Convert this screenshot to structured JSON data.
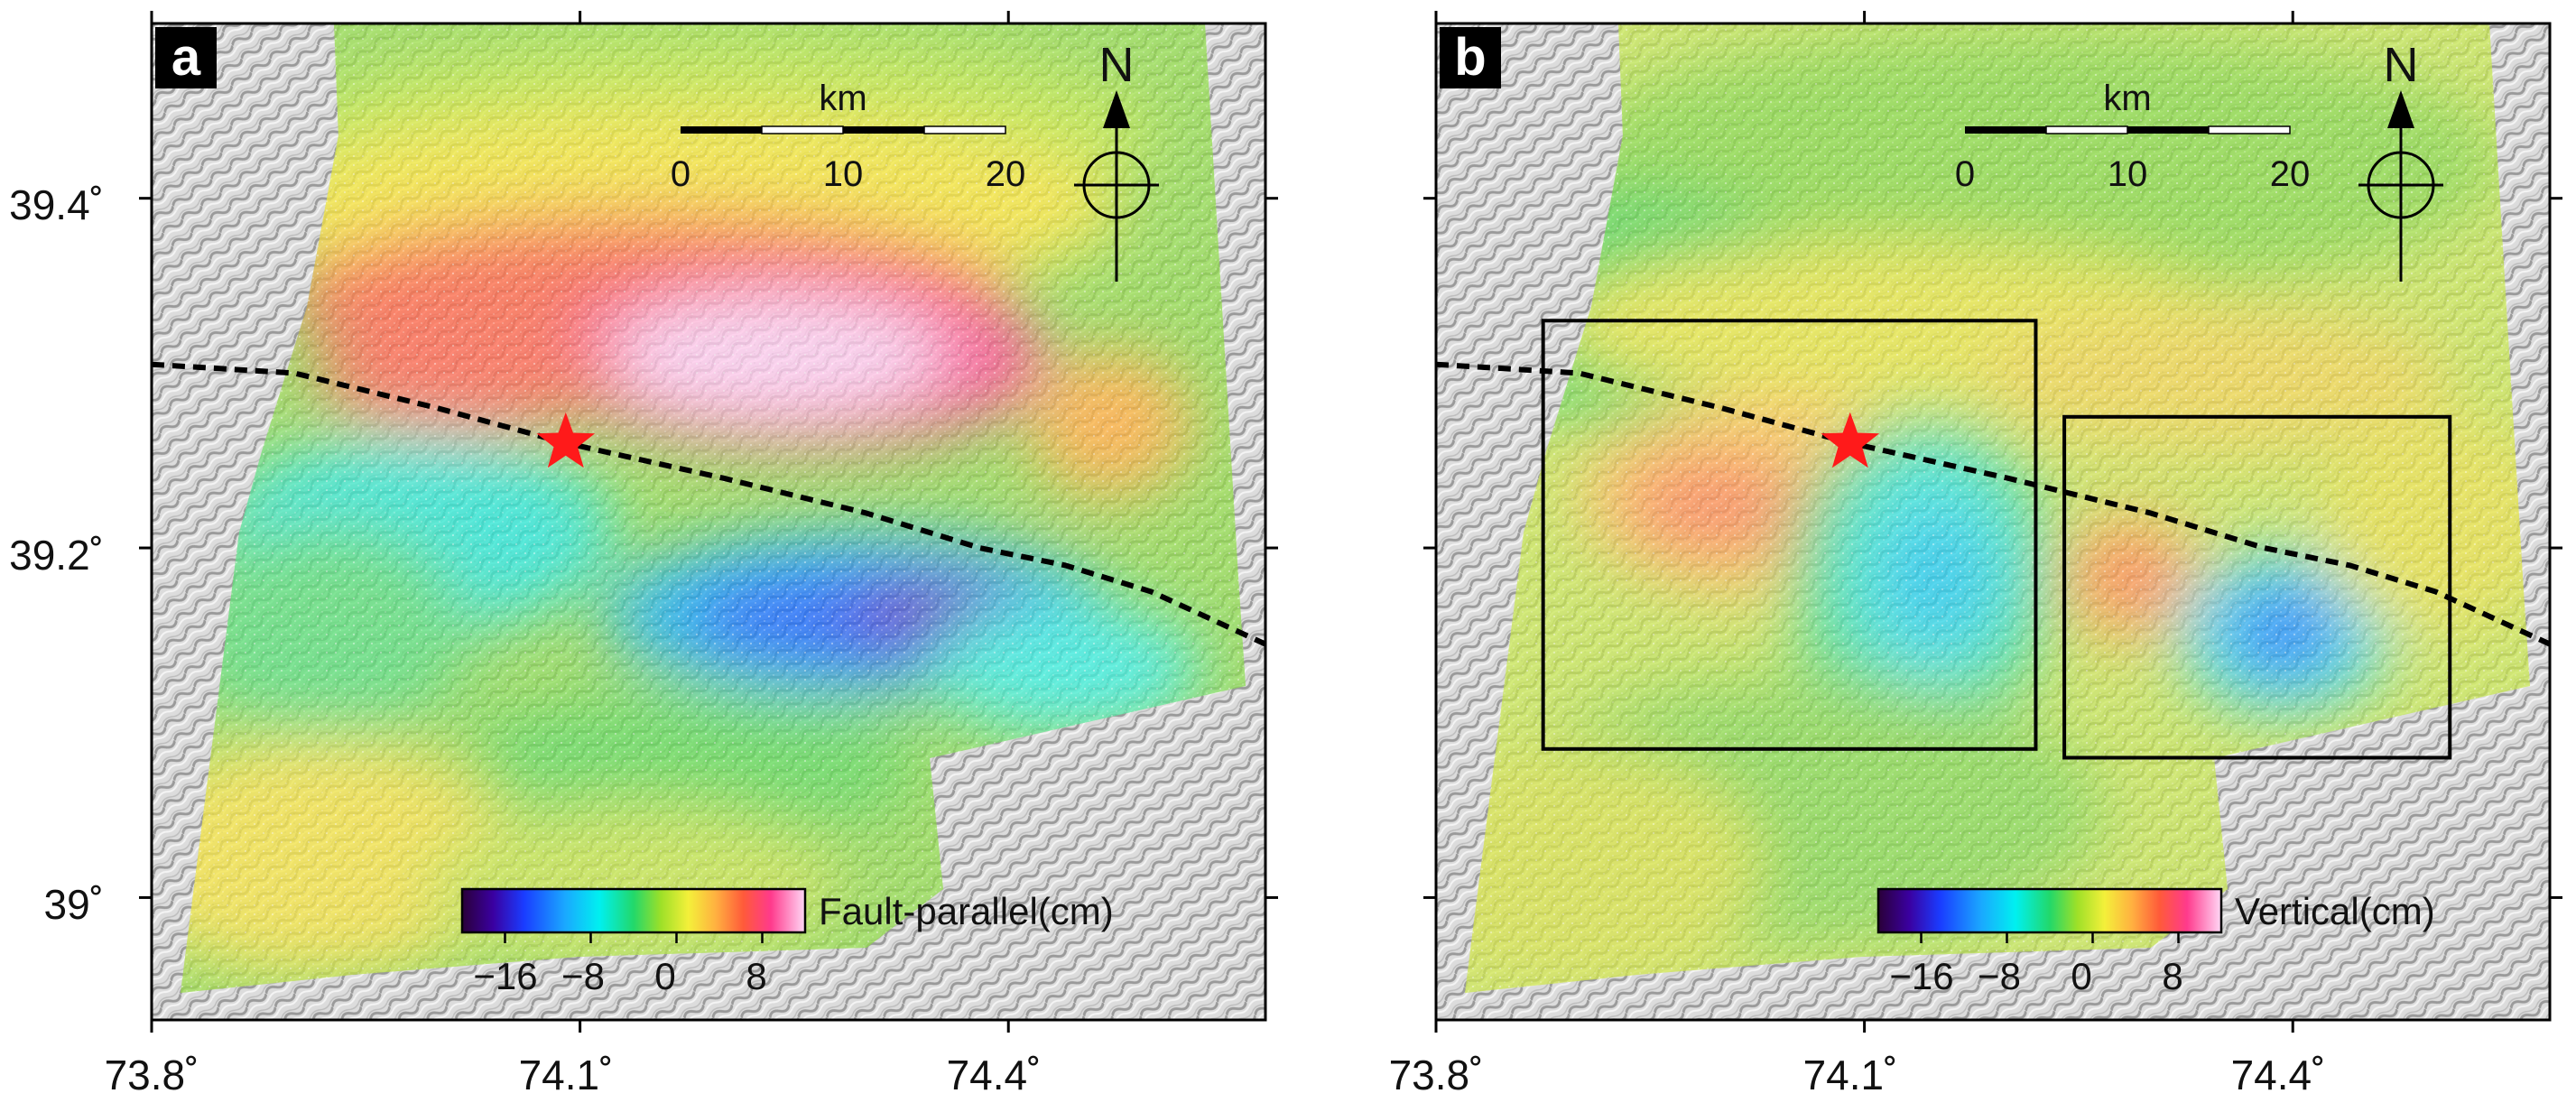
{
  "panels": [
    {
      "letter": "a",
      "colorbar": {
        "title": "Fault-parallel(cm)",
        "ticks": [
          "−16",
          "−8",
          "0",
          "8"
        ],
        "tick_values": [
          -16,
          -8,
          0,
          8
        ],
        "range": [
          -20,
          12
        ]
      },
      "scalebar": {
        "unit": "km",
        "ticks": [
          "0",
          "10",
          "20"
        ]
      },
      "north": "N",
      "subset_boxes": []
    },
    {
      "letter": "b",
      "colorbar": {
        "title": "Vertical(cm)",
        "ticks": [
          "−16",
          "−8",
          "0",
          "8"
        ],
        "tick_values": [
          -16,
          -8,
          0,
          8
        ],
        "range": [
          -20,
          12
        ]
      },
      "scalebar": {
        "unit": "km",
        "ticks": [
          "0",
          "10",
          "20"
        ]
      },
      "north": "N",
      "subset_boxes": [
        {
          "lon": [
            73.875,
            74.22
          ],
          "lat": [
            39.085,
            39.33
          ]
        },
        {
          "lon": [
            74.24,
            74.51
          ],
          "lat": [
            39.08,
            39.275
          ]
        }
      ]
    }
  ],
  "map_extent": {
    "lon": [
      73.8,
      74.58
    ],
    "lat": [
      38.93,
      39.5
    ]
  },
  "x_ticks": [
    "73.8˚",
    "74.1˚",
    "74.4˚"
  ],
  "x_tick_values": [
    73.8,
    74.1,
    74.4
  ],
  "y_ticks": [
    "39.4˚",
    "39.2˚",
    "39˚"
  ],
  "y_tick_values": [
    39.4,
    39.2,
    39.0
  ],
  "epicenter": {
    "lon": 74.09,
    "lat": 39.26
  },
  "fault_trace": [
    [
      73.8,
      39.305
    ],
    [
      73.9,
      39.3
    ],
    [
      74.0,
      39.28
    ],
    [
      74.09,
      39.26
    ],
    [
      74.2,
      39.24
    ],
    [
      74.3,
      39.22
    ],
    [
      74.38,
      39.2
    ],
    [
      74.44,
      39.19
    ],
    [
      74.5,
      39.175
    ],
    [
      74.58,
      39.145
    ]
  ],
  "colors": {
    "epicenter": "#ff1a1a",
    "fault": "#000000",
    "frame": "#000000"
  }
}
